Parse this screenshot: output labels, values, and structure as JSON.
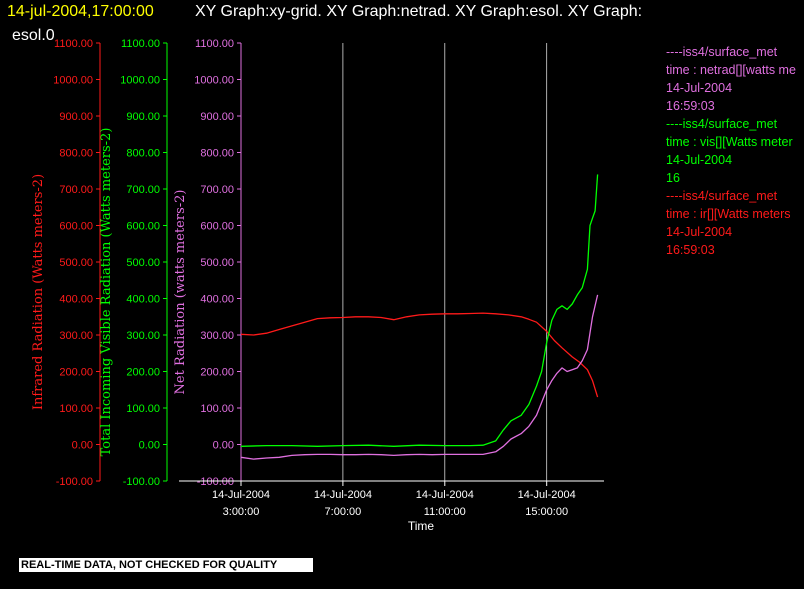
{
  "header": {
    "timestamp": "14-jul-2004,17:00:00",
    "graphs_line1": "XY Graph:xy-grid.  XY Graph:netrad.  XY Graph:esol.  XY Graph:",
    "graphs_line2": "esol.0"
  },
  "legend": [
    {
      "source": "----iss4/surface_met",
      "field": "time : netrad[][watts me",
      "date": "14-Jul-2004",
      "time": "16:59:03",
      "color": "#e070e0"
    },
    {
      "source": "----iss4/surface_met",
      "field": "time : vis[][Watts meter",
      "date": "14-Jul-2004",
      "time": "16",
      "color": "#00ff00"
    },
    {
      "source": "----iss4/surface_met",
      "field": "time : ir[][Watts meters",
      "date": "14-Jul-2004",
      "time": "16:59:03",
      "color": "#ff1a1a"
    }
  ],
  "notice": "REAL-TIME DATA, NOT CHECKED FOR QUALITY",
  "colors": {
    "ir": "#ff1a1a",
    "vis": "#00ff00",
    "netrad": "#e070e0",
    "grid": "#ffffff",
    "axis": "#ffffff"
  },
  "chart_data": {
    "type": "line",
    "title": "",
    "xlabel": "Time",
    "x_ticks": [
      {
        "hours": 3,
        "date": "14-Jul-2004",
        "time": "3:00:00"
      },
      {
        "hours": 7,
        "date": "14-Jul-2004",
        "time": "7:00:00"
      },
      {
        "hours": 11,
        "date": "14-Jul-2004",
        "time": "11:00:00"
      },
      {
        "hours": 15,
        "date": "14-Jul-2004",
        "time": "15:00:00"
      }
    ],
    "xlim": [
      3,
      17.25
    ],
    "ylim": [
      -100,
      1100
    ],
    "y_ticks": [
      "-100.00",
      "0.00",
      "100.00",
      "200.00",
      "300.00",
      "400.00",
      "500.00",
      "600.00",
      "700.00",
      "800.00",
      "900.00",
      "1000.00",
      "1100.00"
    ],
    "grid": "vertical",
    "y_axes": [
      {
        "id": "ir",
        "label": "Infrared Radiation (Watts meters-2)",
        "color": "#ff1a1a"
      },
      {
        "id": "vis",
        "label": "Total Incoming Visible Radiation (Watts meters-2)",
        "color": "#00ff00"
      },
      {
        "id": "netrad",
        "label": "Net Radiation (watts meters-2)",
        "color": "#e070e0"
      }
    ],
    "series": [
      {
        "id": "ir",
        "color": "#ff1a1a",
        "x": [
          3.0,
          3.5,
          4.0,
          4.5,
          5.0,
          5.5,
          6.0,
          6.5,
          7.0,
          7.5,
          8.0,
          8.5,
          9.0,
          9.5,
          10.0,
          10.5,
          11.0,
          11.5,
          12.0,
          12.5,
          13.0,
          13.5,
          14.0,
          14.3,
          14.6,
          15.0,
          15.3,
          15.6,
          16.0,
          16.3,
          16.6,
          16.8,
          17.0
        ],
        "y": [
          302,
          300,
          305,
          315,
          325,
          335,
          345,
          347,
          348,
          350,
          350,
          348,
          342,
          350,
          355,
          357,
          358,
          358,
          359,
          360,
          358,
          355,
          350,
          343,
          335,
          310,
          285,
          265,
          240,
          225,
          205,
          175,
          130
        ]
      },
      {
        "id": "vis",
        "color": "#00ff00",
        "x": [
          3.0,
          4.0,
          5.0,
          6.0,
          7.0,
          8.0,
          9.0,
          10.0,
          11.0,
          12.0,
          12.5,
          13.0,
          13.3,
          13.6,
          14.0,
          14.3,
          14.6,
          14.8,
          15.0,
          15.2,
          15.4,
          15.6,
          15.8,
          16.0,
          16.2,
          16.4,
          16.6,
          16.7,
          16.8,
          16.9,
          17.0
        ],
        "y": [
          -5,
          -3,
          -3,
          -5,
          -3,
          -2,
          -5,
          -2,
          -3,
          -3,
          -2,
          10,
          40,
          65,
          80,
          110,
          160,
          200,
          280,
          340,
          370,
          380,
          370,
          385,
          410,
          430,
          480,
          600,
          620,
          640,
          740
        ]
      },
      {
        "id": "netrad",
        "color": "#e070e0",
        "x": [
          3.0,
          3.5,
          4.0,
          4.5,
          5.0,
          5.5,
          6.0,
          6.5,
          7.0,
          7.5,
          8.0,
          8.5,
          9.0,
          9.5,
          10.0,
          10.5,
          11.0,
          11.5,
          12.0,
          12.5,
          13.0,
          13.3,
          13.6,
          14.0,
          14.3,
          14.6,
          15.0,
          15.2,
          15.4,
          15.6,
          15.8,
          16.0,
          16.2,
          16.4,
          16.6,
          16.8,
          17.0
        ],
        "y": [
          -35,
          -40,
          -37,
          -35,
          -30,
          -28,
          -27,
          -27,
          -28,
          -28,
          -27,
          -28,
          -30,
          -28,
          -27,
          -28,
          -27,
          -27,
          -27,
          -27,
          -20,
          -5,
          15,
          30,
          50,
          80,
          150,
          175,
          195,
          210,
          200,
          205,
          210,
          230,
          260,
          350,
          410
        ]
      }
    ]
  }
}
